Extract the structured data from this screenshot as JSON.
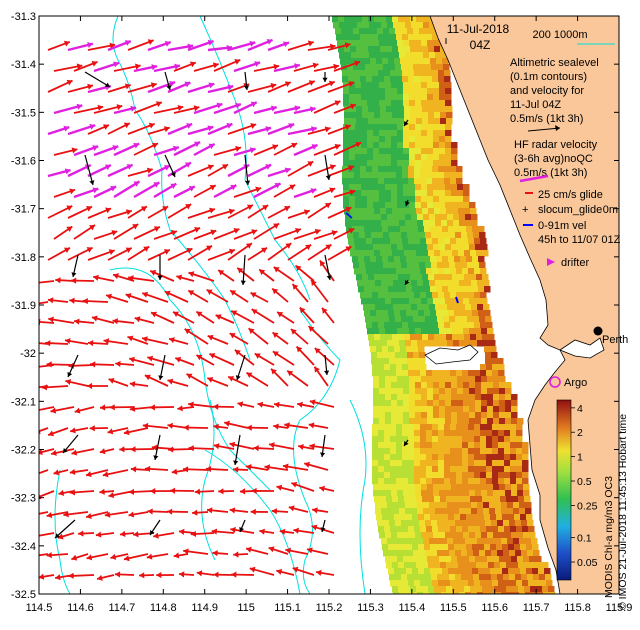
{
  "header": {
    "date": "11-Jul-2018",
    "time": "04Z",
    "scale_label": "200  1000m"
  },
  "axes": {
    "y_labels": [
      "-31.3",
      "-31.4",
      "-31.5",
      "-31.6",
      "-31.7",
      "-31.8",
      "-31.9",
      "-32",
      "-32.1",
      "-32.2",
      "-32.3",
      "-32.4",
      "-32.5"
    ],
    "y_values": [
      -31.3,
      -31.4,
      -31.5,
      -31.6,
      -31.7,
      -31.8,
      -31.9,
      -32.0,
      -32.1,
      -32.2,
      -32.3,
      -32.4,
      -32.5
    ],
    "x_labels": [
      "114.5",
      "114.6",
      "114.7",
      "114.8",
      "114.9",
      "115",
      "115.1",
      "115.2",
      "115.3",
      "115.4",
      "115.5",
      "115.6",
      "115.7",
      "115.8",
      "115.9"
    ],
    "x_values": [
      114.5,
      114.6,
      114.7,
      114.8,
      114.9,
      115.0,
      115.1,
      115.2,
      115.3,
      115.4,
      115.5,
      115.6,
      115.7,
      115.8,
      115.9
    ],
    "xlim": [
      114.5,
      115.9
    ],
    "ylim": [
      -32.5,
      -31.3
    ]
  },
  "legend": {
    "altimetric_lines": [
      "Altimetric sealevel",
      "(0.1m contours)",
      "and velocity for",
      "11-Jul 04Z",
      "0.5m/s (1kt 3h)"
    ],
    "hf_lines": [
      "HF radar velocity",
      "(3-6h avg)noQC",
      "0.5m/s (1kt 3h)"
    ],
    "glide_label": "25 cm/s glide",
    "slocum_label": "slocum_glide",
    "slocum_depth": "0m",
    "vel_lines": [
      "0-91m vel",
      "45h to 11/07 01Z"
    ],
    "drifter_label": "drifter",
    "argo_label": "Argo",
    "city_label": "Perth"
  },
  "colorbar": {
    "ticks": [
      "4",
      "2",
      "1",
      "0.5",
      "0.25",
      "0.1",
      "0.05"
    ],
    "tick_values": [
      4,
      2,
      1,
      0.5,
      0.25,
      0.1,
      0.05
    ],
    "range": [
      0.03,
      5
    ],
    "label_product": "MODIS Chl-a mg/m3 OC3",
    "label_credit": "© IMOS 21-Jul-2018 11:45:13 Hobart time"
  },
  "colors": {
    "hf_vector": "#e81010",
    "hf_magenta": "#e020e0",
    "alt_vector": "#000000",
    "land": "#f9c79a",
    "contour": "#00e0e0",
    "glider": "#0000ff",
    "argo": "#e020e0"
  }
}
